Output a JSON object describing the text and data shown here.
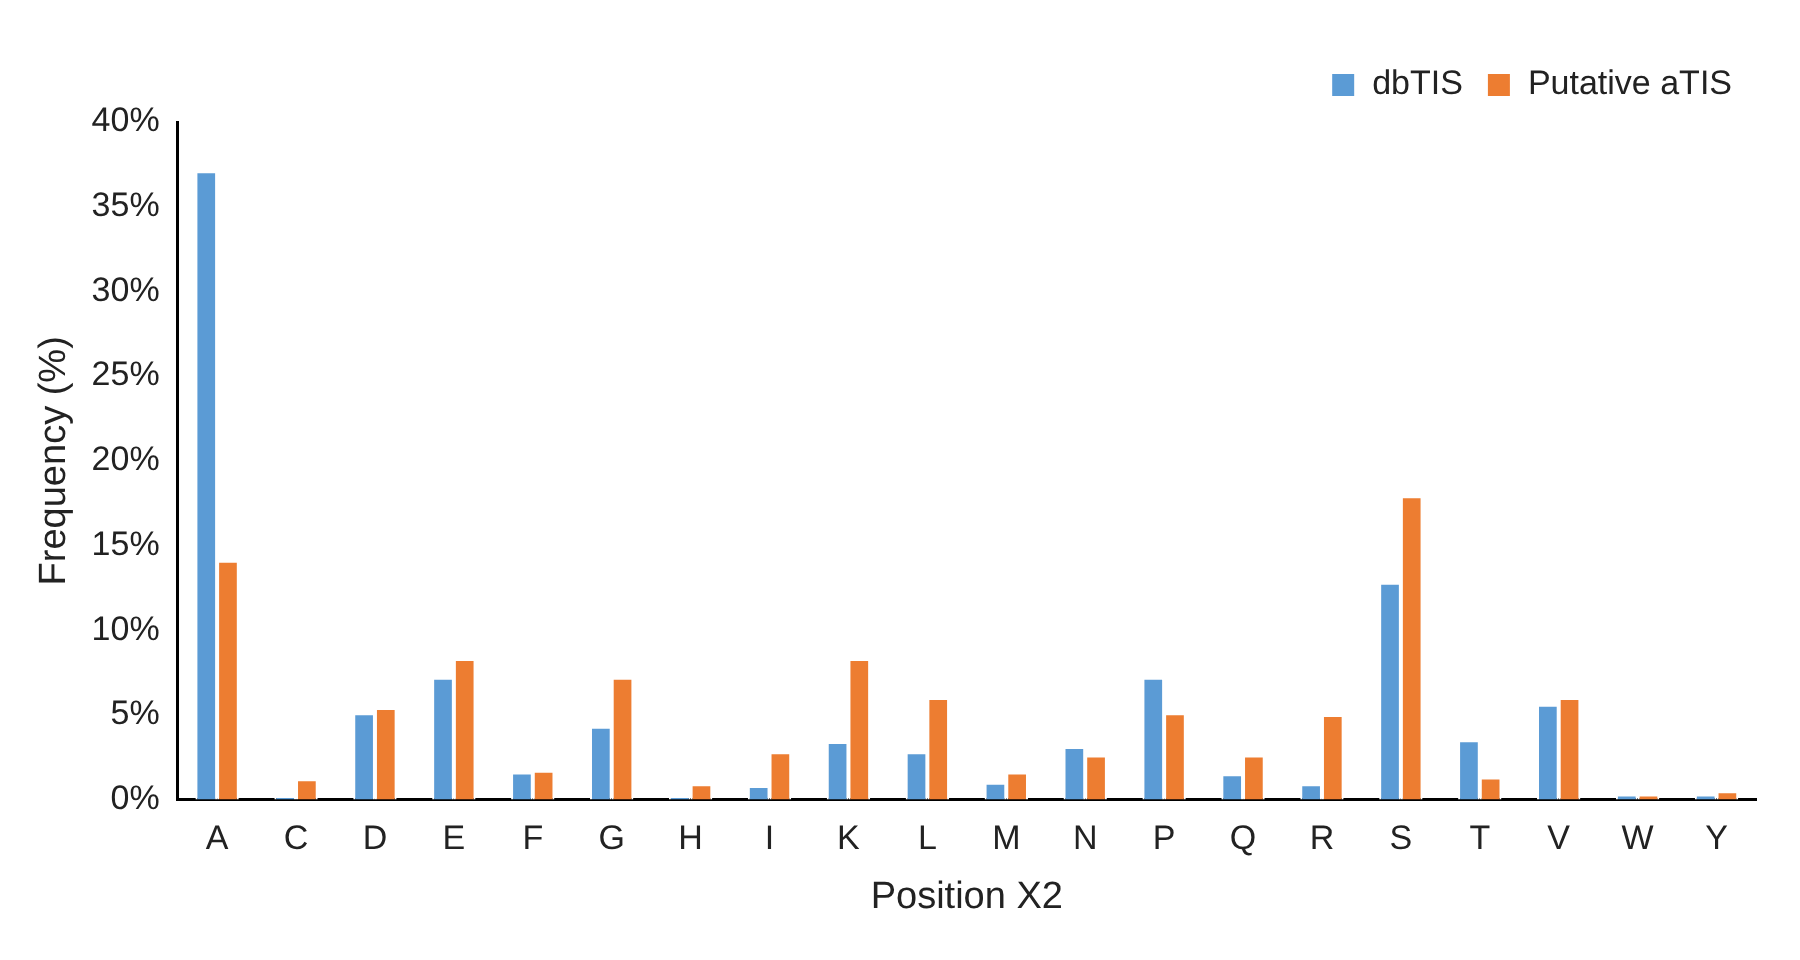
{
  "chart_data": {
    "type": "bar",
    "xlabel": "Position X2",
    "ylabel": "Frequency (%)",
    "categories": [
      "A",
      "C",
      "D",
      "E",
      "F",
      "G",
      "H",
      "I",
      "K",
      "L",
      "M",
      "N",
      "P",
      "Q",
      "R",
      "S",
      "T",
      "V",
      "W",
      "Y"
    ],
    "series": [
      {
        "name": "dbTIS",
        "color": "#5b9bd5",
        "values": [
          37.1,
          0.2,
          5.1,
          7.2,
          1.6,
          4.3,
          0.2,
          0.8,
          3.4,
          2.8,
          1.0,
          3.1,
          7.2,
          1.5,
          0.9,
          12.8,
          3.5,
          5.6,
          0.3,
          0.3
        ]
      },
      {
        "name": "Putative aTIS",
        "color": "#ed7d31",
        "values": [
          14.1,
          1.2,
          5.4,
          8.3,
          1.7,
          7.2,
          0.9,
          2.8,
          8.3,
          6.0,
          1.6,
          2.6,
          5.1,
          2.6,
          5.0,
          17.9,
          1.3,
          6.0,
          0.3,
          0.5
        ]
      }
    ],
    "ylim": [
      0,
      40
    ],
    "yticks": [
      {
        "value": 0,
        "label": "0%"
      },
      {
        "value": 5,
        "label": "5%"
      },
      {
        "value": 10,
        "label": "10%"
      },
      {
        "value": 15,
        "label": "15%"
      },
      {
        "value": 20,
        "label": "20%"
      },
      {
        "value": 25,
        "label": "25%"
      },
      {
        "value": 30,
        "label": "30%"
      },
      {
        "value": 35,
        "label": "35%"
      },
      {
        "value": 40,
        "label": "40%"
      }
    ],
    "grid": false,
    "legend": "top right"
  }
}
